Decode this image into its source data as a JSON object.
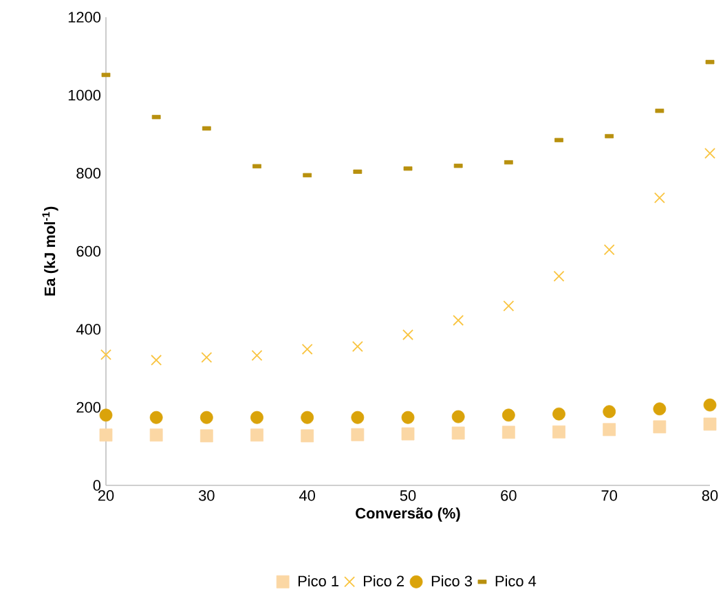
{
  "chart_data": {
    "type": "scatter",
    "xlabel": "Conversão (%)",
    "ylabel": "Ea (kJ mol$^{-1}$)",
    "x": [
      20,
      25,
      30,
      35,
      40,
      45,
      50,
      55,
      60,
      65,
      70,
      75,
      80
    ],
    "series": [
      {
        "name": "Pico 1",
        "color": "#fbd7a4",
        "marker": "square",
        "values": [
          129,
          129,
          127,
          129,
          127,
          130,
          132,
          134,
          136,
          137,
          143,
          150,
          157
        ]
      },
      {
        "name": "Pico 2",
        "color": "#f9c440",
        "marker": "cross",
        "values": [
          335,
          321,
          328,
          333,
          349,
          356,
          386,
          423,
          460,
          536,
          604,
          737,
          851
        ]
      },
      {
        "name": "Pico 3",
        "color": "#daa30a",
        "marker": "circle",
        "values": [
          180,
          174,
          174,
          174,
          174,
          174,
          174,
          176,
          180,
          183,
          189,
          196,
          206
        ]
      },
      {
        "name": "Pico 4",
        "color": "#b8900e",
        "marker": "square",
        "values": [
          1052,
          944,
          915,
          818,
          795,
          804,
          812,
          819,
          828,
          885,
          895,
          960,
          1085
        ]
      }
    ],
    "xlim": [
      20,
      80
    ],
    "xticks": [
      20,
      30,
      40,
      50,
      60,
      70,
      80
    ],
    "ylim": [
      0,
      1200
    ],
    "yticks": [
      0,
      200,
      400,
      600,
      800,
      1000,
      1200
    ],
    "grid": false,
    "legend": "bottom"
  }
}
